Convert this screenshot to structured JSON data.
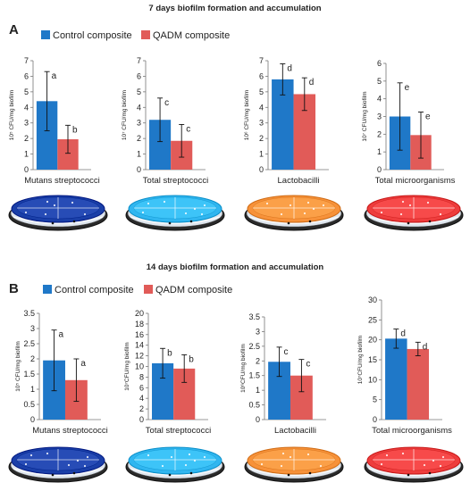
{
  "panels": [
    {
      "title": "7 days biofilm formation and accumulation",
      "label": "A",
      "legend": [
        "Control composite",
        "QADM composite"
      ]
    },
    {
      "title": "14 days biofilm formation and accumulation",
      "label": "B",
      "legend": [
        "Control composite",
        "QADM composite"
      ]
    }
  ],
  "colors": {
    "control": "#1f78c8",
    "qadm": "#e15b58",
    "dish_mutans": "#1a3fa8",
    "dish_total_strep": "#30b6f0",
    "dish_lacto": "#f7923a",
    "dish_total_micro": "#ee3d3d"
  },
  "chart_data": [
    {
      "type": "bar",
      "panel": "A",
      "xlabel": "Mutans streptococci",
      "ylabel": "10⁵ CFU/mg biofilm",
      "ylim": [
        0,
        7
      ],
      "yticks": [
        "0",
        "1",
        "2",
        "3",
        "4",
        "5",
        "6",
        "7"
      ],
      "categories": [
        "Control composite",
        "QADM composite"
      ],
      "values": [
        4.4,
        1.95
      ],
      "errors": [
        1.9,
        0.9
      ],
      "letters": [
        "a",
        "b"
      ]
    },
    {
      "type": "bar",
      "panel": "A",
      "xlabel": "Total streptococci",
      "ylabel": "10⁷ CFU/mg biofilm",
      "ylim": [
        0,
        7
      ],
      "yticks": [
        "0",
        "1",
        "2",
        "3",
        "4",
        "5",
        "6",
        "7"
      ],
      "categories": [
        "Control composite",
        "QADM composite"
      ],
      "values": [
        3.2,
        1.85
      ],
      "errors": [
        1.4,
        1.05
      ],
      "letters": [
        "c",
        "c"
      ]
    },
    {
      "type": "bar",
      "panel": "A",
      "xlabel": "Lactobacilli",
      "ylabel": "10⁶ CFU/mg biofilm",
      "ylim": [
        0,
        7
      ],
      "yticks": [
        "0",
        "1",
        "2",
        "3",
        "4",
        "5",
        "6",
        "7"
      ],
      "categories": [
        "Control composite",
        "QADM composite"
      ],
      "values": [
        5.8,
        4.85
      ],
      "errors": [
        1.0,
        1.05
      ],
      "letters": [
        "d",
        "d"
      ]
    },
    {
      "type": "bar",
      "panel": "A",
      "xlabel": "Total microorganisms",
      "ylabel": "10⁷ CFU/mg biofilm",
      "ylim": [
        0,
        6
      ],
      "yticks": [
        "0",
        "1",
        "2",
        "3",
        "4",
        "5",
        "6"
      ],
      "categories": [
        "Control composite",
        "QADM composite"
      ],
      "values": [
        3.0,
        1.95
      ],
      "errors": [
        1.9,
        1.3
      ],
      "letters": [
        "e",
        "e"
      ]
    },
    {
      "type": "bar",
      "panel": "B",
      "xlabel": "Mutans streptococci",
      "ylabel": "10⁵ CFU/mg biofilm",
      "ylim": [
        0,
        3.5
      ],
      "yticks": [
        "0",
        "0.5",
        "1",
        "1.5",
        "2",
        "2.5",
        "3",
        "3.5"
      ],
      "categories": [
        "Control composite",
        "QADM composite"
      ],
      "values": [
        1.95,
        1.3
      ],
      "errors": [
        1.0,
        0.7
      ],
      "letters": [
        "a",
        "a"
      ]
    },
    {
      "type": "bar",
      "panel": "B",
      "xlabel": "Total streptococci",
      "ylabel": "10⁷CFU/mg biofilm",
      "ylim": [
        0,
        20
      ],
      "yticks": [
        "0",
        "2",
        "4",
        "6",
        "8",
        "10",
        "12",
        "14",
        "16",
        "18",
        "20"
      ],
      "categories": [
        "Control composite",
        "QADM composite"
      ],
      "values": [
        10.6,
        9.6
      ],
      "errors": [
        2.8,
        2.6
      ],
      "letters": [
        "b",
        "b"
      ]
    },
    {
      "type": "bar",
      "panel": "B",
      "xlabel": "Lactobacilli",
      "ylabel": "10⁶CFU/mg biofilm",
      "ylim": [
        0,
        3.5
      ],
      "yticks": [
        "0",
        "0.5",
        "1",
        "1.5",
        "2",
        "2.5",
        "3",
        "3.5"
      ],
      "categories": [
        "Control composite",
        "QADM composite"
      ],
      "values": [
        1.97,
        1.5
      ],
      "errors": [
        0.5,
        0.55
      ],
      "letters": [
        "c",
        "c"
      ]
    },
    {
      "type": "bar",
      "panel": "B",
      "xlabel": "Total microorganisms",
      "ylabel": "10⁷CFU/mg biofilm",
      "ylim": [
        0,
        30
      ],
      "yticks": [
        "0",
        "5",
        "10",
        "15",
        "20",
        "25",
        "30"
      ],
      "categories": [
        "Control composite",
        "QADM composite"
      ],
      "values": [
        20.3,
        17.7
      ],
      "errors": [
        2.4,
        1.7
      ],
      "letters": [
        "d",
        "d"
      ]
    }
  ]
}
